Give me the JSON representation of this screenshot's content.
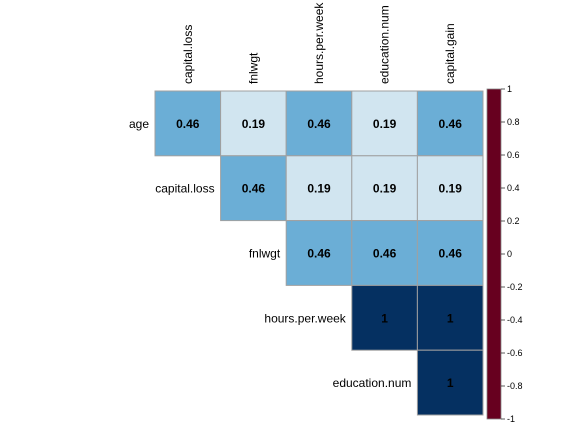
{
  "chart_data": {
    "type": "heatmap",
    "title": "",
    "layout": "upper-triangle correlation matrix",
    "row_labels": [
      "age",
      "capital.loss",
      "fnlwgt",
      "hours.per.week",
      "education.num"
    ],
    "col_labels": [
      "capital.loss",
      "fnlwgt",
      "hours.per.week",
      "education.num",
      "capital.gain"
    ],
    "cells": [
      {
        "row": "age",
        "col": "capital.loss",
        "value": 0.46,
        "label": "0.46"
      },
      {
        "row": "age",
        "col": "fnlwgt",
        "value": 0.19,
        "label": "0.19"
      },
      {
        "row": "age",
        "col": "hours.per.week",
        "value": 0.46,
        "label": "0.46"
      },
      {
        "row": "age",
        "col": "education.num",
        "value": 0.19,
        "label": "0.19"
      },
      {
        "row": "age",
        "col": "capital.gain",
        "value": 0.46,
        "label": "0.46"
      },
      {
        "row": "capital.loss",
        "col": "fnlwgt",
        "value": 0.46,
        "label": "0.46"
      },
      {
        "row": "capital.loss",
        "col": "hours.per.week",
        "value": 0.19,
        "label": "0.19"
      },
      {
        "row": "capital.loss",
        "col": "education.num",
        "value": 0.19,
        "label": "0.19"
      },
      {
        "row": "capital.loss",
        "col": "capital.gain",
        "value": 0.19,
        "label": "0.19"
      },
      {
        "row": "fnlwgt",
        "col": "hours.per.week",
        "value": 0.46,
        "label": "0.46"
      },
      {
        "row": "fnlwgt",
        "col": "education.num",
        "value": 0.46,
        "label": "0.46"
      },
      {
        "row": "fnlwgt",
        "col": "capital.gain",
        "value": 0.46,
        "label": "0.46"
      },
      {
        "row": "hours.per.week",
        "col": "education.num",
        "value": 1,
        "label": "1"
      },
      {
        "row": "hours.per.week",
        "col": "capital.gain",
        "value": 1,
        "label": "1"
      },
      {
        "row": "education.num",
        "col": "capital.gain",
        "value": 1,
        "label": "1"
      }
    ],
    "colorbar": {
      "range": [
        -1,
        1
      ],
      "ticks": [
        "1",
        "0.8",
        "0.6",
        "0.4",
        "0.2",
        "0",
        "-0.2",
        "-0.4",
        "-0.6",
        "-0.8",
        "-1"
      ],
      "colors": [
        "#67001F",
        "#B2182B",
        "#D6604D",
        "#F4A582",
        "#FDDBC7",
        "#FFFFFF",
        "#D1E5F0",
        "#92C5DE",
        "#4393C3",
        "#2166AC",
        "#053061"
      ]
    },
    "cell_colors": {
      "0.19": "#D1E5F0",
      "0.46": "#6BAED6",
      "1": "#053061"
    },
    "grid": true,
    "legend_position": "right"
  }
}
